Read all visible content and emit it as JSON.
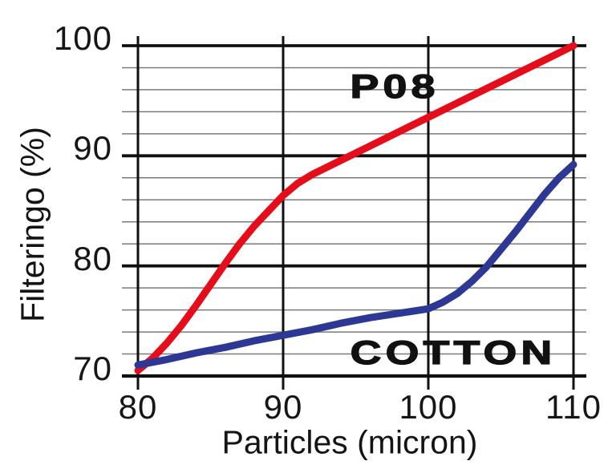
{
  "colors": {
    "background": "#ffffff",
    "grid_major": "#101010",
    "grid_minor": "#7a7a7a",
    "text": "#161616",
    "p08_red": "#e60d1a",
    "cotton_blue": "#2c3894"
  },
  "chart_data": {
    "type": "line",
    "title": "",
    "xlabel": "Particles (micron)",
    "ylabel": "Filteringo (%)",
    "xlim": [
      80,
      110
    ],
    "ylim": [
      70,
      100
    ],
    "x_ticks": [
      80,
      90,
      100,
      110
    ],
    "x_tick_labels": [
      "80",
      "90",
      "100",
      "110"
    ],
    "y_ticks": [
      70,
      80,
      90,
      100
    ],
    "y_tick_labels": [
      "70",
      "80",
      "90",
      "100"
    ],
    "y_minor_step": 2,
    "grid": "horizontal minor every 2%, bold major every 10%, vertical line at each x tick",
    "legend_position": "inline-labels",
    "series": [
      {
        "name": "P08",
        "color": "#e60d1a",
        "x": [
          80,
          81,
          82,
          83,
          84,
          85,
          86,
          87,
          88,
          89,
          90,
          91,
          92,
          94,
          96,
          98,
          100,
          102,
          104,
          106,
          108,
          110
        ],
        "y": [
          70.5,
          71.6,
          73.0,
          74.6,
          76.4,
          78.3,
          80.2,
          82.0,
          83.6,
          85.0,
          86.4,
          87.5,
          88.3,
          89.6,
          90.9,
          92.2,
          93.5,
          94.8,
          96.1,
          97.4,
          98.7,
          100
        ]
      },
      {
        "name": "COTTON",
        "color": "#2c3894",
        "x": [
          80,
          82,
          84,
          86,
          88,
          90,
          92,
          94,
          96,
          98,
          100,
          101,
          102,
          103,
          104,
          105,
          106,
          107,
          108,
          109,
          110
        ],
        "y": [
          71.0,
          71.5,
          72.1,
          72.6,
          73.2,
          73.7,
          74.2,
          74.8,
          75.3,
          75.7,
          76.1,
          76.7,
          77.5,
          78.6,
          79.9,
          81.5,
          83.1,
          84.8,
          86.5,
          88.0,
          89.2
        ]
      }
    ]
  }
}
